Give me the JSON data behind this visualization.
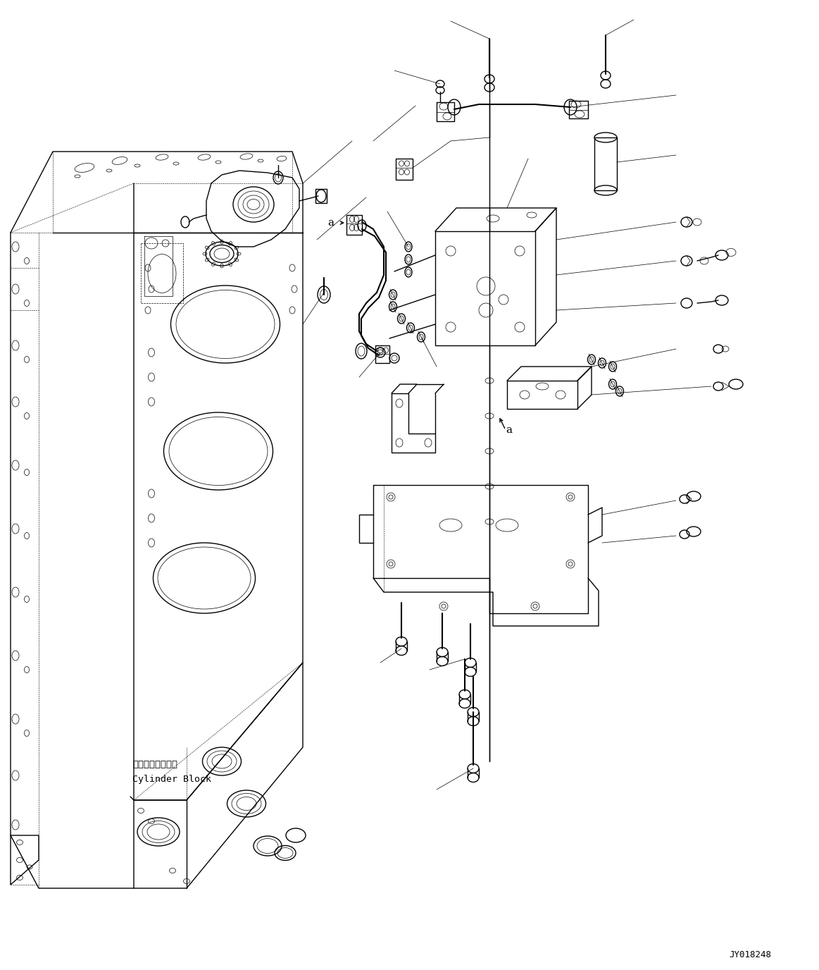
{
  "background_color": "#ffffff",
  "line_color": "#000000",
  "label_jy": "JY018248",
  "label_cylinder_jp": "シリンダブロック",
  "label_cylinder_en": "Cylinder Block",
  "label_a1": "a",
  "label_a2": "a",
  "lw_main": 1.0,
  "lw_thin": 0.5,
  "lw_dash": 0.4,
  "lw_thick": 1.5
}
